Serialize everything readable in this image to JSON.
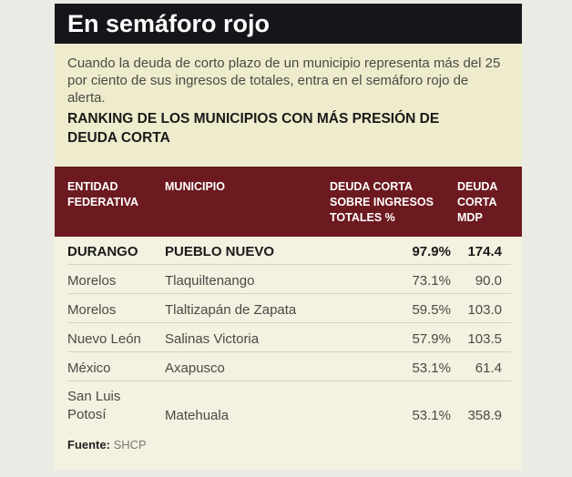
{
  "title": "En semáforo rojo",
  "description": "Cuando la deuda de corto plazo de un municipio representa más del 25 por ciento de sus ingresos de totales, entra en el semáforo rojo de alerta.",
  "ranking_title": "RANKING DE LOS MUNICIPIOS CON MÁS PRESIÓN DE DEUDA CORTA",
  "table": {
    "headers": [
      "ENTIDAD FEDERATIVA",
      "MUNICIPIO",
      "DEUDA CORTA SOBRE INGRESOS TOTALES %",
      "DEUDA CORTA MDP"
    ],
    "rows": [
      [
        "DURANGO",
        "PUEBLO NUEVO",
        "97.9%",
        "174.4"
      ],
      [
        "Morelos",
        "Tlaquiltenango",
        "73.1%",
        "90.0"
      ],
      [
        "Morelos",
        "Tlaltizapán de Zapata",
        "59.5%",
        "103.0"
      ],
      [
        "Nuevo León",
        "Salinas Victoria",
        "57.9%",
        "103.5"
      ],
      [
        "México",
        "Axapusco",
        "53.1%",
        "61.4"
      ],
      [
        "San Luis Potosí",
        "Matehuala",
        "53.1%",
        "358.9"
      ]
    ]
  },
  "source_label": "Fuente:",
  "source": "SHCP",
  "colors": {
    "title_bg": "#15161a",
    "header_bg": "#6c1a20",
    "intro_bg": "#eeeccc",
    "table_bg": "#f4f1e1"
  }
}
